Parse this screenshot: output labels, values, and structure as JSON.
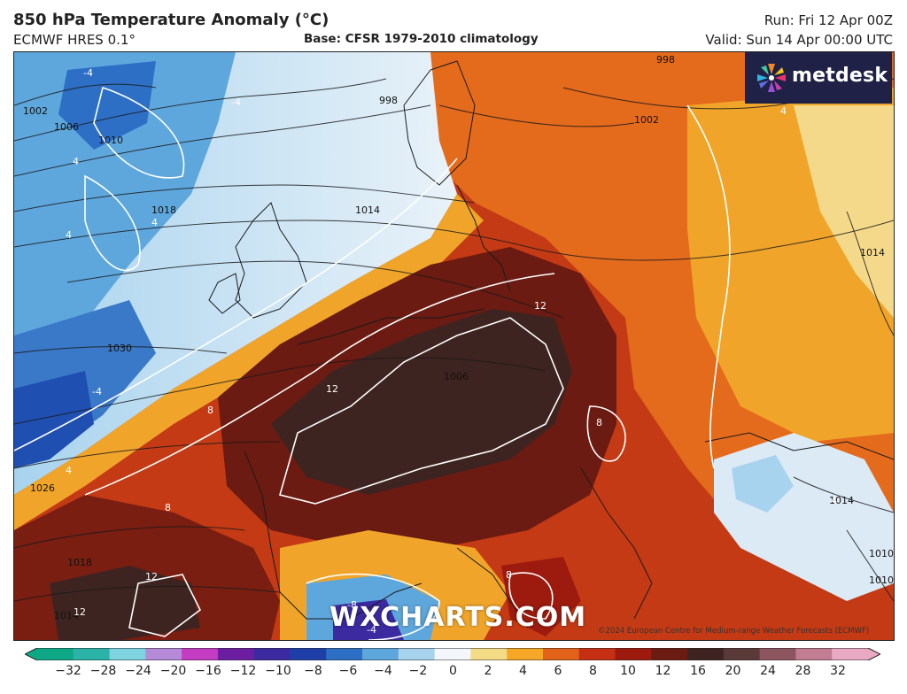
{
  "header": {
    "title": "850 hPa Temperature Anomaly (°C)",
    "model": "ECMWF HRES 0.1°",
    "base": "Base: CFSR 1979-2010 climatology",
    "run": "Run: Fri 12 Apr 00Z",
    "valid": "Valid: Sun 14 Apr 00:00 UTC"
  },
  "logo": {
    "text": "metdesk",
    "icon": "metdesk-pinwheel-icon",
    "background": "#1f2147"
  },
  "watermark": "WXCHARTS.COM",
  "copyright": "©2024 European Centre for Medium-range Weather Forecasts (ECMWF)",
  "map": {
    "region": "Europe and North Atlantic",
    "pressure_contour_labels": [
      "1002",
      "1006",
      "1010",
      "1018",
      "1014",
      "998",
      "998",
      "1002",
      "1014",
      "1030",
      "1026",
      "1018",
      "1014",
      "1006",
      "1014",
      "1010",
      "1010"
    ],
    "anomaly_contour_labels": [
      "-4",
      "-4",
      "4",
      "4",
      "4",
      "-4",
      "8",
      "4",
      "12",
      "12",
      "8",
      "8",
      "12",
      "12",
      "8",
      "4",
      "-8",
      "-4",
      "4"
    ]
  },
  "colorbar": {
    "unit": "°C",
    "ticks": [
      "−32",
      "−28",
      "−24",
      "−20",
      "−16",
      "−12",
      "−10",
      "−8",
      "−6",
      "−4",
      "−2",
      "0",
      "2",
      "4",
      "6",
      "8",
      "10",
      "12",
      "16",
      "20",
      "24",
      "28",
      "32"
    ],
    "colors": [
      "#0fa887",
      "#2ab3a6",
      "#7fd3e0",
      "#b58ad8",
      "#c43cc2",
      "#6b1fa0",
      "#3b2aa0",
      "#1f3fa8",
      "#2d6fc4",
      "#5ea7dd",
      "#a8d3ee",
      "#f3f7fb",
      "#f4dc86",
      "#f5a828",
      "#e2621a",
      "#c52f14",
      "#9c1b0e",
      "#6b1b12",
      "#3d2420",
      "#5a3a38",
      "#8d5560",
      "#c27d92",
      "#eaa9c3"
    ]
  }
}
